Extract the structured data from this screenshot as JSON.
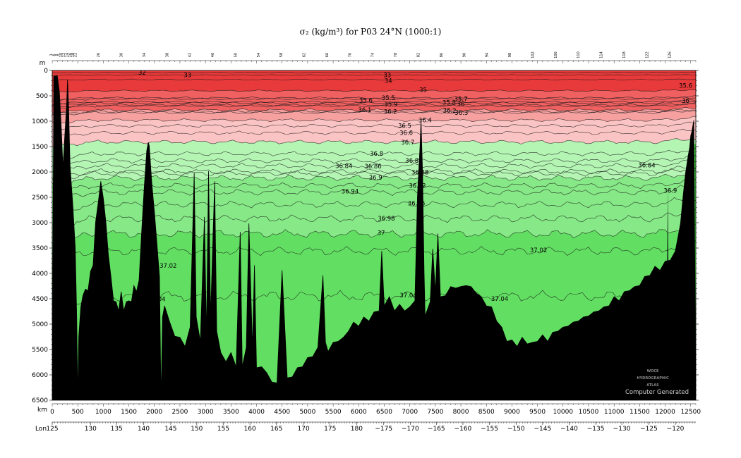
{
  "title": "σ₂ (kg/m³) for P03 24°N (1000:1)",
  "chart_data": {
    "type": "area",
    "title": "σ₂ (kg/m³) for P03 24°N (1000:1)",
    "x_unit": "km",
    "y_unit": "m",
    "lon_label": "Lon",
    "xlim": [
      0,
      12600
    ],
    "ylim": [
      0,
      6500
    ],
    "y_inverted": true,
    "x_ticks": [
      0,
      500,
      1000,
      1500,
      2000,
      2500,
      3000,
      3500,
      4000,
      4500,
      5000,
      5500,
      6000,
      6500,
      7000,
      7500,
      8000,
      8500,
      9000,
      9500,
      10000,
      10500,
      11000,
      11500,
      12000,
      12500
    ],
    "y_ticks": [
      0,
      500,
      1000,
      1500,
      2000,
      2500,
      3000,
      3500,
      4000,
      4500,
      5000,
      5500,
      6000,
      6500
    ],
    "lon_ticks": [
      {
        "km": 0,
        "label": "125"
      },
      {
        "km": 750,
        "label": "130"
      },
      {
        "km": 1260,
        "label": "135"
      },
      {
        "km": 1790,
        "label": "140"
      },
      {
        "km": 2320,
        "label": "145"
      },
      {
        "km": 2830,
        "label": "150"
      },
      {
        "km": 3350,
        "label": "155"
      },
      {
        "km": 3870,
        "label": "160"
      },
      {
        "km": 4390,
        "label": "165"
      },
      {
        "km": 4920,
        "label": "170"
      },
      {
        "km": 5440,
        "label": "175"
      },
      {
        "km": 5960,
        "label": "180"
      },
      {
        "km": 6490,
        "label": "−175"
      },
      {
        "km": 7010,
        "label": "−170"
      },
      {
        "km": 7520,
        "label": "−165"
      },
      {
        "km": 8040,
        "label": "−160"
      },
      {
        "km": 8560,
        "label": "−155"
      },
      {
        "km": 9080,
        "label": "−150"
      },
      {
        "km": 9600,
        "label": "−145"
      },
      {
        "km": 10120,
        "label": "−140"
      },
      {
        "km": 10640,
        "label": "−135"
      },
      {
        "km": 11150,
        "label": "−130"
      },
      {
        "km": 11680,
        "label": "−125"
      },
      {
        "km": 12200,
        "label": "−120"
      }
    ],
    "station_labels": [
      "3",
      "6",
      "8",
      "10",
      "12",
      "14",
      "16",
      "18",
      "22",
      "26",
      "30",
      "34",
      "38",
      "42",
      "46",
      "50",
      "54",
      "58",
      "62",
      "66",
      "70",
      "74",
      "78",
      "82",
      "86",
      "90",
      "94",
      "98",
      "102",
      "106",
      "110",
      "114",
      "118",
      "122",
      "126"
    ],
    "contour_levels": [
      {
        "sigma": "32",
        "depth": 40
      },
      {
        "sigma": "33",
        "depth": 90
      },
      {
        "sigma": "34",
        "depth": 180
      },
      {
        "sigma": "35",
        "depth": 400
      },
      {
        "sigma": "35.5",
        "depth": 540
      },
      {
        "sigma": "35.6",
        "depth": 620
      },
      {
        "sigma": "35.7",
        "depth": 560
      },
      {
        "sigma": "35.8",
        "depth": 640
      },
      {
        "sigma": "35.9",
        "depth": 680
      },
      {
        "sigma": "36",
        "depth": 700
      },
      {
        "sigma": "36.1",
        "depth": 780
      },
      {
        "sigma": "36.2",
        "depth": 810
      },
      {
        "sigma": "36.3",
        "depth": 830
      },
      {
        "sigma": "36.4",
        "depth": 980
      },
      {
        "sigma": "36.5",
        "depth": 1090
      },
      {
        "sigma": "36.6",
        "depth": 1230
      },
      {
        "sigma": "36.7",
        "depth": 1410
      },
      {
        "sigma": "36.8",
        "depth": 1640
      },
      {
        "sigma": "36.82",
        "depth": 1780
      },
      {
        "sigma": "36.84",
        "depth": 1880
      },
      {
        "sigma": "36.86",
        "depth": 1990
      },
      {
        "sigma": "36.88",
        "depth": 2030
      },
      {
        "sigma": "36.9",
        "depth": 2120
      },
      {
        "sigma": "36.92",
        "depth": 2270
      },
      {
        "sigma": "36.94",
        "depth": 2400
      },
      {
        "sigma": "36.96",
        "depth": 2640
      },
      {
        "sigma": "36.98",
        "depth": 2920
      },
      {
        "sigma": "37",
        "depth": 3220
      },
      {
        "sigma": "37.02",
        "depth": 3560
      },
      {
        "sigma": "37.04",
        "depth": 4450
      }
    ],
    "contour_text_labels": [
      {
        "text": "32",
        "km": 1760,
        "depth": 40
      },
      {
        "text": "33",
        "km": 2650,
        "depth": 90
      },
      {
        "text": "33",
        "km": 6560,
        "depth": 90
      },
      {
        "text": "34",
        "km": 6580,
        "depth": 200
      },
      {
        "text": "35",
        "km": 7260,
        "depth": 380
      },
      {
        "text": "35.5",
        "km": 6580,
        "depth": 540
      },
      {
        "text": "35.6",
        "km": 6140,
        "depth": 590
      },
      {
        "text": "35.9",
        "km": 6630,
        "depth": 670
      },
      {
        "text": "35.8",
        "km": 7770,
        "depth": 630
      },
      {
        "text": "35.7",
        "km": 8000,
        "depth": 560
      },
      {
        "text": "36",
        "km": 8000,
        "depth": 660
      },
      {
        "text": "35.6",
        "km": 12400,
        "depth": 300
      },
      {
        "text": "36",
        "km": 12400,
        "depth": 600
      },
      {
        "text": "36.1",
        "km": 6120,
        "depth": 780
      },
      {
        "text": "36.2",
        "km": 6620,
        "depth": 810
      },
      {
        "text": "36.2",
        "km": 7780,
        "depth": 790
      },
      {
        "text": "36.3",
        "km": 8010,
        "depth": 830
      },
      {
        "text": "36.4",
        "km": 7300,
        "depth": 980
      },
      {
        "text": "36.5",
        "km": 6900,
        "depth": 1090
      },
      {
        "text": "36.6",
        "km": 6930,
        "depth": 1230
      },
      {
        "text": "36.7",
        "km": 6960,
        "depth": 1420
      },
      {
        "text": "36.8",
        "km": 6350,
        "depth": 1640
      },
      {
        "text": "36.82",
        "km": 7080,
        "depth": 1780
      },
      {
        "text": "36.84",
        "km": 5710,
        "depth": 1880
      },
      {
        "text": "36.86",
        "km": 6280,
        "depth": 1890
      },
      {
        "text": "36.88",
        "km": 7200,
        "depth": 2010
      },
      {
        "text": "36.84",
        "km": 11640,
        "depth": 1870
      },
      {
        "text": "36.9",
        "km": 6330,
        "depth": 2110
      },
      {
        "text": "36.92",
        "km": 7150,
        "depth": 2270
      },
      {
        "text": "36.94",
        "km": 5830,
        "depth": 2380
      },
      {
        "text": "36.9",
        "km": 12100,
        "depth": 2370
      },
      {
        "text": "36.96",
        "km": 7130,
        "depth": 2620
      },
      {
        "text": "36.98",
        "km": 6540,
        "depth": 2920
      },
      {
        "text": "37",
        "km": 6440,
        "depth": 3200
      },
      {
        "text": "37.02",
        "km": 9520,
        "depth": 3540
      },
      {
        "text": "37.02",
        "km": 2270,
        "depth": 3850
      },
      {
        "text": "37.04",
        "km": 2050,
        "depth": 4510
      },
      {
        "text": "37.04",
        "km": 6970,
        "depth": 4430
      },
      {
        "text": "37.04",
        "km": 8760,
        "depth": 4500
      }
    ],
    "bathymetry": [
      [
        0,
        6500
      ],
      [
        30,
        100
      ],
      [
        100,
        120
      ],
      [
        140,
        400
      ],
      [
        180,
        1200
      ],
      [
        210,
        1900
      ],
      [
        240,
        1400
      ],
      [
        280,
        700
      ],
      [
        300,
        200
      ],
      [
        320,
        700
      ],
      [
        350,
        1900
      ],
      [
        400,
        2600
      ],
      [
        450,
        3500
      ],
      [
        480,
        4800
      ],
      [
        500,
        6500
      ],
      [
        520,
        5200
      ],
      [
        560,
        4700
      ],
      [
        600,
        4400
      ],
      [
        650,
        4350
      ],
      [
        700,
        4300
      ],
      [
        750,
        4000
      ],
      [
        800,
        3800
      ],
      [
        850,
        3000
      ],
      [
        900,
        2600
      ],
      [
        950,
        2200
      ],
      [
        1000,
        2500
      ],
      [
        1050,
        3000
      ],
      [
        1100,
        3600
      ],
      [
        1150,
        4100
      ],
      [
        1200,
        4500
      ],
      [
        1250,
        4600
      ],
      [
        1300,
        4700
      ],
      [
        1350,
        4400
      ],
      [
        1400,
        4700
      ],
      [
        1450,
        4600
      ],
      [
        1500,
        4500
      ],
      [
        1550,
        4600
      ],
      [
        1600,
        4200
      ],
      [
        1650,
        4400
      ],
      [
        1700,
        4100
      ],
      [
        1750,
        3200
      ],
      [
        1800,
        2300
      ],
      [
        1850,
        1600
      ],
      [
        1880,
        1400
      ],
      [
        1900,
        1500
      ],
      [
        1950,
        2200
      ],
      [
        2000,
        2800
      ],
      [
        2050,
        3400
      ],
      [
        2100,
        4100
      ],
      [
        2130,
        6500
      ],
      [
        2160,
        4900
      ],
      [
        2200,
        4600
      ],
      [
        2300,
        5000
      ],
      [
        2400,
        5200
      ],
      [
        2500,
        5300
      ],
      [
        2600,
        5400
      ],
      [
        2700,
        5100
      ],
      [
        2780,
        2000
      ],
      [
        2820,
        4900
      ],
      [
        2900,
        5300
      ],
      [
        2980,
        2900
      ],
      [
        3020,
        5200
      ],
      [
        3060,
        2000
      ],
      [
        3100,
        4800
      ],
      [
        3180,
        2200
      ],
      [
        3220,
        5100
      ],
      [
        3300,
        5600
      ],
      [
        3400,
        5700
      ],
      [
        3500,
        5600
      ],
      [
        3600,
        5800
      ],
      [
        3680,
        3200
      ],
      [
        3720,
        5800
      ],
      [
        3800,
        5500
      ],
      [
        3850,
        3000
      ],
      [
        3920,
        5500
      ],
      [
        3960,
        3800
      ],
      [
        4000,
        5900
      ],
      [
        4100,
        5800
      ],
      [
        4200,
        6000
      ],
      [
        4300,
        6100
      ],
      [
        4400,
        6200
      ],
      [
        4500,
        3900
      ],
      [
        4600,
        6100
      ],
      [
        4700,
        6000
      ],
      [
        4800,
        5900
      ],
      [
        4900,
        5800
      ],
      [
        5000,
        5700
      ],
      [
        5100,
        5600
      ],
      [
        5200,
        5500
      ],
      [
        5300,
        4000
      ],
      [
        5350,
        5400
      ],
      [
        5400,
        5500
      ],
      [
        5500,
        5400
      ],
      [
        5600,
        5300
      ],
      [
        5700,
        5300
      ],
      [
        5800,
        5100
      ],
      [
        5900,
        5000
      ],
      [
        6000,
        5000
      ],
      [
        6100,
        4900
      ],
      [
        6200,
        4900
      ],
      [
        6300,
        4800
      ],
      [
        6400,
        4700
      ],
      [
        6450,
        3600
      ],
      [
        6500,
        4600
      ],
      [
        6600,
        4500
      ],
      [
        6700,
        4700
      ],
      [
        6800,
        4650
      ],
      [
        6900,
        4700
      ],
      [
        7000,
        4700
      ],
      [
        7100,
        4500
      ],
      [
        7150,
        2500
      ],
      [
        7200,
        1500
      ],
      [
        7220,
        1000
      ],
      [
        7250,
        2000
      ],
      [
        7280,
        4000
      ],
      [
        7300,
        4800
      ],
      [
        7400,
        4600
      ],
      [
        7450,
        3500
      ],
      [
        7500,
        4400
      ],
      [
        7550,
        3200
      ],
      [
        7600,
        4500
      ],
      [
        7700,
        4400
      ],
      [
        7800,
        4300
      ],
      [
        7900,
        4250
      ],
      [
        8000,
        4300
      ],
      [
        8100,
        4200
      ],
      [
        8200,
        4300
      ],
      [
        8300,
        4350
      ],
      [
        8400,
        4500
      ],
      [
        8500,
        4600
      ],
      [
        8600,
        4700
      ],
      [
        8700,
        4900
      ],
      [
        8800,
        5100
      ],
      [
        8900,
        5300
      ],
      [
        9000,
        5350
      ],
      [
        9100,
        5400
      ],
      [
        9200,
        5300
      ],
      [
        9300,
        5350
      ],
      [
        9400,
        5400
      ],
      [
        9500,
        5300
      ],
      [
        9600,
        5250
      ],
      [
        9700,
        5300
      ],
      [
        9800,
        5200
      ],
      [
        9900,
        5100
      ],
      [
        10000,
        5100
      ],
      [
        10100,
        5000
      ],
      [
        10200,
        5000
      ],
      [
        10300,
        4900
      ],
      [
        10400,
        4900
      ],
      [
        10500,
        4800
      ],
      [
        10600,
        4800
      ],
      [
        10700,
        4700
      ],
      [
        10800,
        4700
      ],
      [
        10900,
        4600
      ],
      [
        11000,
        4500
      ],
      [
        11100,
        4500
      ],
      [
        11200,
        4400
      ],
      [
        11300,
        4300
      ],
      [
        11400,
        4300
      ],
      [
        11500,
        4200
      ],
      [
        11600,
        4100
      ],
      [
        11700,
        4000
      ],
      [
        11800,
        3900
      ],
      [
        11900,
        3900
      ],
      [
        12000,
        3800
      ],
      [
        12100,
        3700
      ],
      [
        12200,
        3600
      ],
      [
        12300,
        3000
      ],
      [
        12350,
        2500
      ],
      [
        12400,
        2000
      ],
      [
        12450,
        1700
      ],
      [
        12480,
        1500
      ],
      [
        12500,
        1300
      ],
      [
        12520,
        1200
      ],
      [
        12560,
        1000
      ],
      [
        12600,
        6500
      ]
    ],
    "colors": {
      "dense_red": "#e83a3a",
      "red_mid": "#f06060",
      "red_light": "#f7a0a0",
      "pink_light": "#fbc4c4",
      "green_light": "#b4f5b4",
      "green_mid": "#86e886",
      "green_deep": "#62df62",
      "right_strip": "#4cd64c",
      "bathymetry": "#000000"
    },
    "watermark": {
      "lines": [
        "WOCE",
        "HYDROGRAPHIC",
        "ATLAS"
      ],
      "caption": "Computer Generated"
    }
  }
}
